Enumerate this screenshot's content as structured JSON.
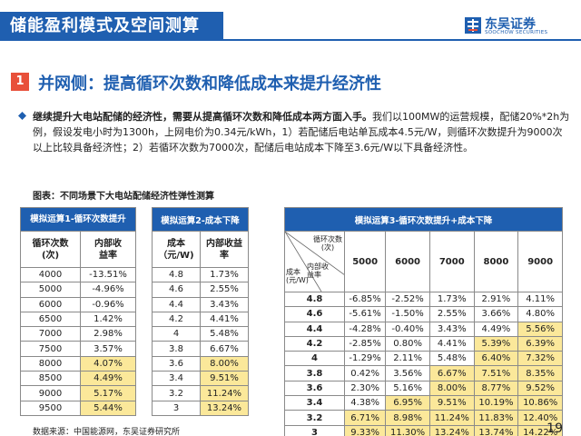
{
  "header": {
    "title": "储能盈利模式及空间测算",
    "logo_cn": "东吴证券",
    "logo_en": "SOOCHOW SECURITIES",
    "accent": "#1f5fb0"
  },
  "section": {
    "number": "1",
    "title": "并网侧：提高循环次数和降低成本来提升经济性",
    "number_color": "#e8503a"
  },
  "bullet": {
    "bold": "继续提升大电站配储的经济性，需要从提高循环次数和降低成本两方面入手。",
    "text": "我们以100MW的运营规模，配储20%*2h为例，假设发电小时为1300h，上网电价为0.34元/kWh，1）若配储后电站单瓦成本4.5元/W，则循环次数提升为9000次以上比较具备经济性；2）若循环次数为7000次，配储后电站成本下降至3.6元/W以下具备经济性。"
  },
  "figure_title": "图表：不同场景下大电站配储经济性弹性测算",
  "table1": {
    "title": "模拟运算1-循环次数提升",
    "col1": "循环次数(次)",
    "col2": "内部收益率",
    "rows": [
      [
        "4000",
        "-13.51%"
      ],
      [
        "5000",
        "-4.96%"
      ],
      [
        "6000",
        "-0.96%"
      ],
      [
        "6500",
        "1.42%"
      ],
      [
        "7000",
        "2.98%"
      ],
      [
        "7500",
        "3.57%"
      ],
      [
        "8000",
        "4.07%"
      ],
      [
        "8500",
        "4.49%"
      ],
      [
        "9000",
        "5.17%"
      ],
      [
        "9500",
        "5.44%"
      ]
    ],
    "highlight_from": 6
  },
  "table2": {
    "title": "模拟运算2-成本下降",
    "col1": "成本（元/W)",
    "col2": "内部收益率",
    "rows": [
      [
        "4.8",
        "1.73%"
      ],
      [
        "4.6",
        "2.55%"
      ],
      [
        "4.4",
        "3.43%"
      ],
      [
        "4.2",
        "4.41%"
      ],
      [
        "4",
        "5.48%"
      ],
      [
        "3.8",
        "6.67%"
      ],
      [
        "3.6",
        "8.00%"
      ],
      [
        "3.4",
        "9.51%"
      ],
      [
        "3.2",
        "11.24%"
      ],
      [
        "3",
        "13.24%"
      ]
    ],
    "highlight_from": 6
  },
  "table3": {
    "title": "模拟运算3-循环次数提升+成本下降",
    "corner_top": "循环次数(次)",
    "corner_mid": "内部收益率",
    "corner_bottom": "成本(元/W)",
    "columns": [
      "5000",
      "6000",
      "7000",
      "8000",
      "9000"
    ],
    "rows": [
      {
        "cost": "4.8",
        "vals": [
          "-6.85%",
          "-2.52%",
          "1.73%",
          "2.91%",
          "4.11%"
        ],
        "hl": [
          0,
          0,
          0,
          0,
          0
        ]
      },
      {
        "cost": "4.6",
        "vals": [
          "-5.61%",
          "-1.50%",
          "2.55%",
          "3.66%",
          "4.80%"
        ],
        "hl": [
          0,
          0,
          0,
          0,
          0
        ]
      },
      {
        "cost": "4.4",
        "vals": [
          "-4.28%",
          "-0.40%",
          "3.43%",
          "4.49%",
          "5.56%"
        ],
        "hl": [
          0,
          0,
          0,
          0,
          1
        ]
      },
      {
        "cost": "4.2",
        "vals": [
          "-2.85%",
          "0.80%",
          "4.41%",
          "5.39%",
          "6.39%"
        ],
        "hl": [
          0,
          0,
          0,
          1,
          1
        ]
      },
      {
        "cost": "4",
        "vals": [
          "-1.29%",
          "2.11%",
          "5.48%",
          "6.40%",
          "7.32%"
        ],
        "hl": [
          0,
          0,
          0,
          1,
          1
        ]
      },
      {
        "cost": "3.8",
        "vals": [
          "0.42%",
          "3.56%",
          "6.67%",
          "7.51%",
          "8.35%"
        ],
        "hl": [
          0,
          0,
          1,
          1,
          1
        ]
      },
      {
        "cost": "3.6",
        "vals": [
          "2.30%",
          "5.16%",
          "8.00%",
          "8.77%",
          "9.52%"
        ],
        "hl": [
          0,
          0,
          1,
          1,
          1
        ]
      },
      {
        "cost": "3.4",
        "vals": [
          "4.38%",
          "6.95%",
          "9.51%",
          "10.19%",
          "10.86%"
        ],
        "hl": [
          0,
          1,
          1,
          1,
          1
        ]
      },
      {
        "cost": "3.2",
        "vals": [
          "6.71%",
          "8.98%",
          "11.24%",
          "11.83%",
          "12.40%"
        ],
        "hl": [
          1,
          1,
          1,
          1,
          1
        ]
      },
      {
        "cost": "3",
        "vals": [
          "9.33%",
          "11.30%",
          "13.24%",
          "13.74%",
          "14.22%"
        ],
        "hl": [
          1,
          1,
          1,
          1,
          1
        ]
      }
    ]
  },
  "footer": {
    "source": "数据来源：中国能源网，东吴证券研究所",
    "page": "19"
  },
  "colors": {
    "header_blue": "#1f5fb0",
    "highlight": "#fbe89a",
    "title_underline": "#1f5fb0"
  }
}
